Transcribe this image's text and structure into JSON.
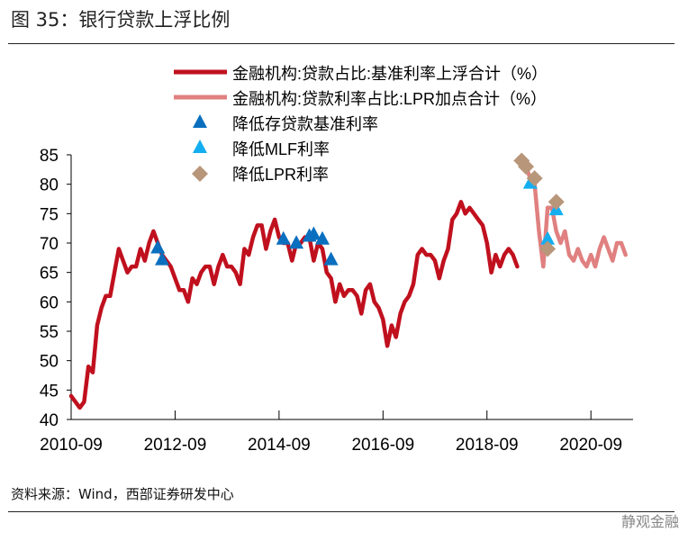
{
  "title": "图 35：银行贷款上浮比例",
  "source": "资料来源：Wind，西部证券研发中心",
  "watermark": "静观金融",
  "chart_data": {
    "type": "line",
    "title": "图 35：银行贷款上浮比例",
    "xlabel": "",
    "ylabel": "",
    "ylim": [
      40,
      85
    ],
    "yticks": [
      "40",
      "45",
      "50",
      "55",
      "60",
      "65",
      "70",
      "75",
      "80",
      "85"
    ],
    "xticks": [
      "2010-09",
      "2012-09",
      "2014-09",
      "2016-09",
      "2018-09",
      "2020-09"
    ],
    "x_start": "2010-09",
    "legend_position": "top-center",
    "series": [
      {
        "name": "金融机构:贷款占比:基准利率上浮合计（%）",
        "color": "#c0101e",
        "start": "2010-09",
        "values": [
          44,
          43,
          42,
          43,
          49,
          48,
          56,
          59,
          61,
          61,
          65,
          69,
          67,
          65,
          66,
          66,
          69,
          67,
          70,
          72,
          70,
          68,
          67,
          66,
          64,
          62,
          62,
          60,
          64,
          63,
          65,
          66,
          66,
          63,
          66,
          68,
          66,
          66,
          65,
          63,
          69,
          68,
          71,
          73,
          73,
          69,
          72,
          74,
          71,
          70,
          70,
          67,
          70,
          70,
          71,
          71,
          67,
          70,
          69,
          65,
          64,
          60,
          63,
          61,
          62,
          62,
          61,
          58,
          62,
          63,
          60,
          59,
          57,
          52.5,
          56,
          54,
          58,
          60,
          61,
          63,
          68,
          69,
          68,
          68,
          67,
          64,
          67,
          69,
          74,
          75,
          77,
          75,
          76,
          75,
          74,
          73,
          70,
          65,
          68,
          66,
          68,
          69,
          68,
          66
        ]
      },
      {
        "name": "金融机构:贷款利率占比:LPR加点合计（%）",
        "color": "#e08080",
        "start": "2019-05",
        "values": [
          84,
          83,
          81,
          80,
          72,
          66,
          76,
          76,
          72,
          70,
          72,
          68,
          67,
          69,
          67,
          66,
          68,
          66,
          69,
          71,
          69,
          67,
          70,
          70,
          68
        ]
      }
    ],
    "markers": [
      {
        "name": "降低存贷款基准利率",
        "shape": "triangle",
        "color": "#0a6fbf",
        "points": [
          [
            "2012-05",
            69
          ],
          [
            "2012-06",
            67
          ],
          [
            "2014-10",
            70.5
          ],
          [
            "2015-01",
            69.8
          ],
          [
            "2015-04",
            71
          ],
          [
            "2015-05",
            71.3
          ],
          [
            "2015-07",
            70.5
          ],
          [
            "2015-09",
            67
          ]
        ]
      },
      {
        "name": "降低MLF利率",
        "shape": "triangle",
        "color": "#14aef0",
        "points": [
          [
            "2019-07",
            80
          ],
          [
            "2019-11",
            70.5
          ],
          [
            "2020-01",
            75.5
          ]
        ]
      },
      {
        "name": "降低LPR利率",
        "shape": "diamond",
        "color": "#b8967a",
        "points": [
          [
            "2019-05",
            84
          ],
          [
            "2019-06",
            83
          ],
          [
            "2019-08",
            81
          ],
          [
            "2019-11",
            69
          ],
          [
            "2020-01",
            77
          ]
        ]
      }
    ]
  }
}
